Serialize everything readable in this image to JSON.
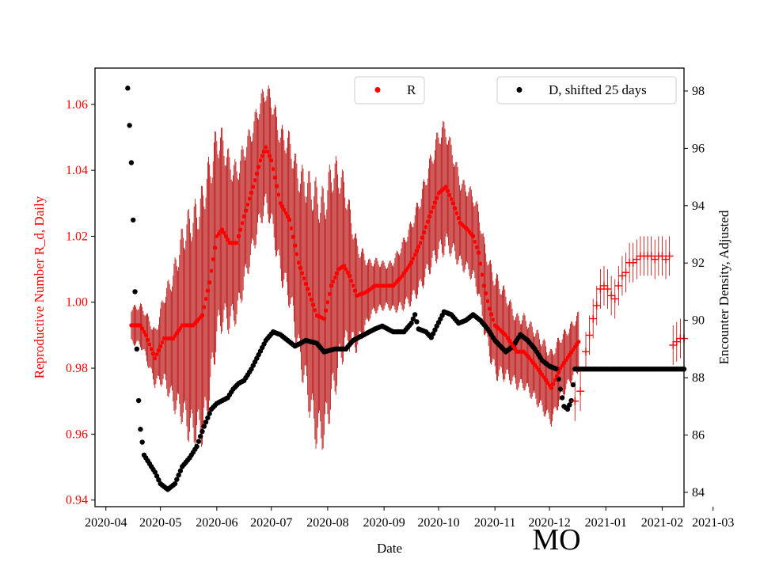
{
  "chart_data": {
    "type": "scatter",
    "title": "",
    "state_label": "MO",
    "xlabel": "Date",
    "ylabel_left": "Reproductive Number R_d, Daily",
    "ylabel_right": "Encounter Density, Adjusted",
    "colors": {
      "r_series": "#ff0000",
      "r_errorbar": "#b40000",
      "d_series": "#000000",
      "left_axis": "#ff0000",
      "right_axis": "#000000"
    },
    "x_range_days": [
      -6,
      318
    ],
    "x_origin_date": "2020-04-01",
    "x_ticks": [
      {
        "day": 0,
        "label": "2020-04"
      },
      {
        "day": 30,
        "label": "2020-05"
      },
      {
        "day": 61,
        "label": "2020-06"
      },
      {
        "day": 91,
        "label": "2020-07"
      },
      {
        "day": 122,
        "label": "2020-08"
      },
      {
        "day": 153,
        "label": "2020-09"
      },
      {
        "day": 183,
        "label": "2020-10"
      },
      {
        "day": 214,
        "label": "2020-11"
      },
      {
        "day": 244,
        "label": "2020-12"
      },
      {
        "day": 275,
        "label": "2021-01"
      },
      {
        "day": 306,
        "label": "2021-02"
      },
      {
        "day": 334,
        "label": "2021-03"
      }
    ],
    "left_axis": {
      "range": [
        0.938,
        1.071
      ],
      "ticks": [
        0.94,
        0.96,
        0.98,
        1.0,
        1.02,
        1.04,
        1.06
      ],
      "tick_labels": [
        "0.94",
        "0.96",
        "0.98",
        "1.00",
        "1.02",
        "1.04",
        "1.06"
      ]
    },
    "right_axis": {
      "range": [
        83.5,
        98.8
      ],
      "ticks": [
        84,
        86,
        88,
        90,
        92,
        94,
        96,
        98
      ],
      "tick_labels": [
        "84",
        "86",
        "88",
        "90",
        "92",
        "94",
        "96",
        "98"
      ]
    },
    "legend": [
      {
        "label": "R",
        "position": "top-center",
        "marker": "dot",
        "color": "#ff0000"
      },
      {
        "label": "D, shifted 25 days",
        "position": "top-right",
        "marker": "dot",
        "color": "#000000"
      }
    ],
    "r_series": {
      "name": "R",
      "day_range": [
        14,
        260
      ],
      "knots": [
        [
          14,
          0.993
        ],
        [
          19,
          0.993
        ],
        [
          22,
          0.99
        ],
        [
          27,
          0.983
        ],
        [
          32,
          0.989
        ],
        [
          37,
          0.989
        ],
        [
          42,
          0.993
        ],
        [
          48,
          0.993
        ],
        [
          53,
          0.996
        ],
        [
          57,
          1.006
        ],
        [
          61,
          1.02
        ],
        [
          64,
          1.022
        ],
        [
          68,
          1.018
        ],
        [
          72,
          1.018
        ],
        [
          76,
          1.026
        ],
        [
          81,
          1.035
        ],
        [
          85,
          1.043
        ],
        [
          88,
          1.047
        ],
        [
          91,
          1.043
        ],
        [
          96,
          1.03
        ],
        [
          101,
          1.025
        ],
        [
          106,
          1.012
        ],
        [
          111,
          1.004
        ],
        [
          116,
          0.996
        ],
        [
          120,
          0.995
        ],
        [
          124,
          1.005
        ],
        [
          128,
          1.01
        ],
        [
          131,
          1.011
        ],
        [
          134,
          1.008
        ],
        [
          138,
          1.002
        ],
        [
          143,
          1.003
        ],
        [
          148,
          1.005
        ],
        [
          153,
          1.005
        ],
        [
          158,
          1.005
        ],
        [
          163,
          1.008
        ],
        [
          168,
          1.012
        ],
        [
          173,
          1.018
        ],
        [
          178,
          1.026
        ],
        [
          183,
          1.033
        ],
        [
          187,
          1.035
        ],
        [
          191,
          1.03
        ],
        [
          195,
          1.024
        ],
        [
          199,
          1.022
        ],
        [
          202,
          1.02
        ],
        [
          205,
          1.015
        ],
        [
          208,
          1.005
        ],
        [
          211,
          0.998
        ],
        [
          214,
          0.993
        ],
        [
          220,
          0.99
        ],
        [
          226,
          0.985
        ],
        [
          230,
          0.985
        ],
        [
          236,
          0.981
        ],
        [
          240,
          0.978
        ],
        [
          245,
          0.974
        ],
        [
          250,
          0.98
        ],
        [
          255,
          0.984
        ],
        [
          260,
          0.988
        ]
      ],
      "error_halfwidth_knots": [
        [
          14,
          0.005
        ],
        [
          20,
          0.006
        ],
        [
          28,
          0.008
        ],
        [
          35,
          0.016
        ],
        [
          45,
          0.03
        ],
        [
          55,
          0.035
        ],
        [
          62,
          0.028
        ],
        [
          70,
          0.022
        ],
        [
          80,
          0.018
        ],
        [
          88,
          0.017
        ],
        [
          95,
          0.02
        ],
        [
          105,
          0.025
        ],
        [
          115,
          0.035
        ],
        [
          125,
          0.033
        ],
        [
          135,
          0.018
        ],
        [
          145,
          0.008
        ],
        [
          155,
          0.006
        ],
        [
          165,
          0.01
        ],
        [
          175,
          0.014
        ],
        [
          185,
          0.018
        ],
        [
          195,
          0.012
        ],
        [
          205,
          0.012
        ],
        [
          215,
          0.014
        ],
        [
          225,
          0.01
        ],
        [
          235,
          0.01
        ],
        [
          245,
          0.01
        ],
        [
          255,
          0.008
        ],
        [
          260,
          0.008
        ]
      ]
    },
    "r_late_series": {
      "name": "R (late, plus markers)",
      "points": [
        [
          258,
          0.97
        ],
        [
          261,
          0.973
        ],
        [
          264,
          0.985
        ],
        [
          266,
          0.99
        ],
        [
          268,
          0.995
        ],
        [
          270,
          0.999
        ],
        [
          272,
          1.004
        ],
        [
          274,
          1.005
        ],
        [
          276,
          1.004
        ],
        [
          278,
          1.002
        ],
        [
          280,
          1.001
        ],
        [
          282,
          1.005
        ],
        [
          284,
          1.008
        ],
        [
          286,
          1.009
        ],
        [
          288,
          1.012
        ],
        [
          290,
          1.012
        ],
        [
          292,
          1.013
        ],
        [
          294,
          1.014
        ],
        [
          296,
          1.014
        ],
        [
          298,
          1.014
        ],
        [
          300,
          1.014
        ],
        [
          302,
          1.013
        ],
        [
          304,
          1.014
        ],
        [
          306,
          1.014
        ],
        [
          308,
          1.013
        ],
        [
          310,
          1.014
        ],
        [
          312,
          0.987
        ],
        [
          314,
          0.988
        ],
        [
          316,
          0.989
        ],
        [
          318,
          0.989
        ]
      ],
      "error_halfwidth": 0.006
    },
    "d_series": {
      "name": "D, shifted 25 days",
      "knots": [
        [
          12,
          98.1
        ],
        [
          13,
          96.8
        ],
        [
          14,
          95.5
        ],
        [
          15,
          93.5
        ],
        [
          16,
          91
        ],
        [
          17,
          89.0
        ],
        [
          18,
          87.2
        ],
        [
          19,
          86.2
        ],
        [
          21,
          85.3
        ],
        [
          24,
          85.0
        ],
        [
          27,
          84.7
        ],
        [
          30,
          84.3
        ],
        [
          34,
          84.1
        ],
        [
          38,
          84.3
        ],
        [
          42,
          84.9
        ],
        [
          46,
          85.2
        ],
        [
          50,
          85.6
        ],
        [
          54,
          86.3
        ],
        [
          58,
          86.9
        ],
        [
          61,
          87.1
        ],
        [
          64,
          87.2
        ],
        [
          67,
          87.3
        ],
        [
          70,
          87.6
        ],
        [
          73,
          87.8
        ],
        [
          76,
          87.9
        ],
        [
          80,
          88.3
        ],
        [
          84,
          88.8
        ],
        [
          88,
          89.3
        ],
        [
          92,
          89.6
        ],
        [
          96,
          89.5
        ],
        [
          100,
          89.3
        ],
        [
          104,
          89.1
        ],
        [
          110,
          89.3
        ],
        [
          116,
          89.2
        ],
        [
          120,
          88.9
        ],
        [
          126,
          89.0
        ],
        [
          132,
          89.0
        ],
        [
          136,
          89.3
        ],
        [
          142,
          89.5
        ],
        [
          148,
          89.7
        ],
        [
          152,
          89.8
        ],
        [
          158,
          89.6
        ],
        [
          164,
          89.6
        ],
        [
          168,
          89.9
        ],
        [
          170,
          90.2
        ],
        [
          172,
          89.7
        ],
        [
          176,
          89.6
        ],
        [
          179,
          89.4
        ],
        [
          182,
          89.8
        ],
        [
          186,
          90.3
        ],
        [
          190,
          90.2
        ],
        [
          194,
          89.9
        ],
        [
          198,
          90.0
        ],
        [
          202,
          90.2
        ],
        [
          206,
          90.0
        ],
        [
          210,
          89.7
        ],
        [
          214,
          89.3
        ],
        [
          217,
          89.1
        ],
        [
          220,
          88.9
        ],
        [
          224,
          89.1
        ],
        [
          228,
          89.5
        ],
        [
          232,
          89.3
        ],
        [
          236,
          89.0
        ],
        [
          240,
          88.6
        ],
        [
          244,
          88.4
        ],
        [
          248,
          88.3
        ],
        [
          250,
          87.6
        ],
        [
          252,
          87.0
        ],
        [
          254,
          86.9
        ],
        [
          256,
          87.2
        ],
        [
          258,
          88.3
        ],
        [
          262,
          88.3
        ],
        [
          270,
          88.3
        ],
        [
          280,
          88.3
        ],
        [
          290,
          88.3
        ],
        [
          300,
          88.3
        ],
        [
          310,
          88.3
        ],
        [
          318,
          88.3
        ]
      ]
    }
  }
}
